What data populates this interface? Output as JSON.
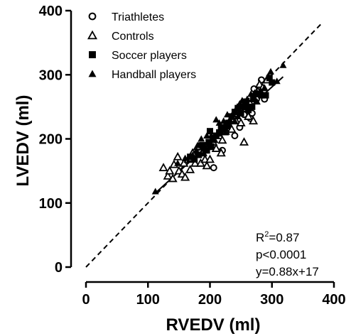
{
  "chart_data": {
    "type": "scatter",
    "xlabel": "RVEDV (ml)",
    "ylabel": "LVEDV (ml)",
    "xlim": [
      0,
      400
    ],
    "ylim": [
      0,
      400
    ],
    "x_ticks": [
      0,
      100,
      200,
      300,
      400
    ],
    "y_ticks": [
      0,
      100,
      200,
      300,
      400
    ],
    "grid": false,
    "legend_position": "top-left",
    "series": [
      {
        "name": "Triathletes",
        "marker": "open-circle",
        "points": [
          [
            206,
            155
          ],
          [
            220,
            182
          ],
          [
            240,
            205
          ],
          [
            248,
            218
          ],
          [
            255,
            238
          ],
          [
            262,
            250
          ],
          [
            268,
            240
          ],
          [
            271,
            278
          ],
          [
            275,
            262
          ],
          [
            280,
            282
          ],
          [
            283,
            292
          ],
          [
            288,
            262
          ],
          [
            265,
            232
          ],
          [
            246,
            228
          ],
          [
            232,
            216
          ]
        ]
      },
      {
        "name": "Controls",
        "marker": "open-triangle",
        "points": [
          [
            125,
            155
          ],
          [
            132,
            142
          ],
          [
            135,
            150
          ],
          [
            140,
            138
          ],
          [
            142,
            160
          ],
          [
            148,
            172
          ],
          [
            150,
            150
          ],
          [
            155,
            145
          ],
          [
            158,
            162
          ],
          [
            160,
            140
          ],
          [
            165,
            168
          ],
          [
            168,
            152
          ],
          [
            172,
            178
          ],
          [
            176,
            162
          ],
          [
            180,
            188
          ],
          [
            185,
            162
          ],
          [
            188,
            178
          ],
          [
            192,
            168
          ],
          [
            195,
            158
          ],
          [
            200,
            188
          ],
          [
            205,
            195
          ],
          [
            210,
            185
          ],
          [
            215,
            205
          ],
          [
            220,
            198
          ],
          [
            225,
            212
          ],
          [
            230,
            220
          ],
          [
            235,
            215
          ],
          [
            238,
            235
          ],
          [
            242,
            228
          ],
          [
            245,
            245
          ],
          [
            250,
            225
          ],
          [
            255,
            195
          ],
          [
            258,
            250
          ],
          [
            262,
            235
          ],
          [
            265,
            255
          ],
          [
            270,
            228
          ],
          [
            275,
            272
          ],
          [
            280,
            285
          ],
          [
            285,
            280
          ],
          [
            292,
            292
          ],
          [
            200,
            168
          ],
          [
            218,
            178
          ],
          [
            170,
            170
          ]
        ]
      },
      {
        "name": "Soccer players",
        "marker": "filled-square",
        "points": [
          [
            168,
            172
          ],
          [
            175,
            168
          ],
          [
            182,
            175
          ],
          [
            188,
            190
          ],
          [
            190,
            185
          ],
          [
            195,
            182
          ],
          [
            198,
            195
          ],
          [
            200,
            212
          ],
          [
            202,
            188
          ],
          [
            205,
            200
          ],
          [
            210,
            205
          ],
          [
            215,
            210
          ],
          [
            218,
            218
          ],
          [
            222,
            215
          ],
          [
            228,
            220
          ],
          [
            230,
            225
          ],
          [
            235,
            235
          ],
          [
            240,
            242
          ],
          [
            245,
            248
          ],
          [
            250,
            240
          ],
          [
            255,
            250
          ],
          [
            258,
            258
          ],
          [
            262,
            245
          ],
          [
            268,
            250
          ],
          [
            270,
            262
          ],
          [
            278,
            270
          ],
          [
            283,
            268
          ],
          [
            290,
            268
          ],
          [
            296,
            295
          ],
          [
            300,
            288
          ]
        ]
      },
      {
        "name": "Handball players",
        "marker": "filled-triangle",
        "points": [
          [
            112,
            118
          ],
          [
            148,
            162
          ],
          [
            160,
            170
          ],
          [
            172,
            175
          ],
          [
            178,
            182
          ],
          [
            182,
            190
          ],
          [
            186,
            200
          ],
          [
            190,
            178
          ],
          [
            195,
            205
          ],
          [
            200,
            195
          ],
          [
            202,
            205
          ],
          [
            208,
            198
          ],
          [
            212,
            208
          ],
          [
            215,
            225
          ],
          [
            220,
            215
          ],
          [
            222,
            228
          ],
          [
            225,
            210
          ],
          [
            228,
            238
          ],
          [
            232,
            230
          ],
          [
            236,
            238
          ],
          [
            240,
            228
          ],
          [
            244,
            250
          ],
          [
            248,
            255
          ],
          [
            252,
            260
          ],
          [
            256,
            258
          ],
          [
            260,
            262
          ],
          [
            262,
            252
          ],
          [
            266,
            270
          ],
          [
            272,
            272
          ],
          [
            276,
            258
          ],
          [
            282,
            275
          ],
          [
            288,
            280
          ],
          [
            294,
            298
          ],
          [
            298,
            305
          ],
          [
            308,
            290
          ],
          [
            318,
            315
          ],
          [
            210,
            230
          ],
          [
            245,
            235
          ]
        ]
      }
    ],
    "regression_line": {
      "slope": 0.88,
      "intercept": 17,
      "x_range": [
        112,
        318
      ],
      "style": "solid"
    },
    "identity_line": {
      "slope": 1,
      "intercept": 0,
      "x_range": [
        0,
        380
      ],
      "style": "dashed"
    },
    "annotations": [
      {
        "parts": [
          "R",
          "2",
          "=0.87"
        ]
      },
      {
        "text": "p<0.0001"
      },
      {
        "text": "y=0.88x+17"
      }
    ]
  }
}
